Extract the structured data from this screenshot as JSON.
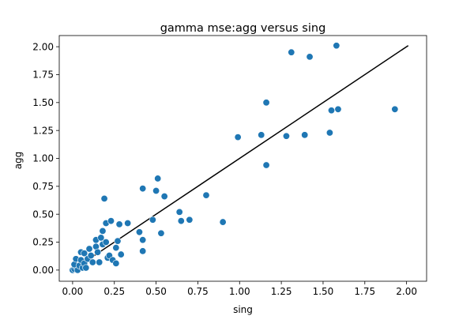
{
  "chart_data": {
    "type": "scatter",
    "title": "gamma mse:agg versus sing",
    "xlabel": "sing",
    "ylabel": "agg",
    "xlim": [
      -0.08,
      2.12
    ],
    "ylim": [
      -0.1,
      2.1
    ],
    "xticks": [
      0.0,
      0.25,
      0.5,
      0.75,
      1.0,
      1.25,
      1.5,
      1.75,
      2.0
    ],
    "xtick_labels": [
      "0.00",
      "0.25",
      "0.50",
      "0.75",
      "1.00",
      "1.25",
      "1.50",
      "1.75",
      "2.00"
    ],
    "yticks": [
      0.0,
      0.25,
      0.5,
      0.75,
      1.0,
      1.25,
      1.5,
      1.75,
      2.0
    ],
    "ytick_labels": [
      "0.00",
      "0.25",
      "0.50",
      "0.75",
      "1.00",
      "1.25",
      "1.50",
      "1.75",
      "2.00"
    ],
    "grid": false,
    "marker_color": "#1f77b4",
    "line_color": "#000000",
    "reference_line": {
      "x": [
        0.0,
        2.01
      ],
      "y": [
        0.0,
        2.01
      ]
    },
    "series": [
      {
        "points": [
          {
            "x": 0.0,
            "y": 0.0
          },
          {
            "x": 0.01,
            "y": 0.01
          },
          {
            "x": 0.02,
            "y": 0.03
          },
          {
            "x": 0.01,
            "y": 0.05
          },
          {
            "x": 0.02,
            "y": 0.1
          },
          {
            "x": 0.03,
            "y": 0.0
          },
          {
            "x": 0.04,
            "y": 0.04
          },
          {
            "x": 0.05,
            "y": 0.16
          },
          {
            "x": 0.05,
            "y": 0.09
          },
          {
            "x": 0.06,
            "y": 0.02
          },
          {
            "x": 0.07,
            "y": 0.15
          },
          {
            "x": 0.07,
            "y": 0.06
          },
          {
            "x": 0.08,
            "y": 0.02
          },
          {
            "x": 0.09,
            "y": 0.1
          },
          {
            "x": 0.1,
            "y": 0.19
          },
          {
            "x": 0.11,
            "y": 0.13
          },
          {
            "x": 0.12,
            "y": 0.07
          },
          {
            "x": 0.14,
            "y": 0.21
          },
          {
            "x": 0.14,
            "y": 0.27
          },
          {
            "x": 0.15,
            "y": 0.16
          },
          {
            "x": 0.16,
            "y": 0.07
          },
          {
            "x": 0.17,
            "y": 0.29
          },
          {
            "x": 0.18,
            "y": 0.35
          },
          {
            "x": 0.18,
            "y": 0.23
          },
          {
            "x": 0.19,
            "y": 0.64
          },
          {
            "x": 0.2,
            "y": 0.25
          },
          {
            "x": 0.2,
            "y": 0.42
          },
          {
            "x": 0.21,
            "y": 0.11
          },
          {
            "x": 0.22,
            "y": 0.13
          },
          {
            "x": 0.23,
            "y": 0.44
          },
          {
            "x": 0.24,
            "y": 0.09
          },
          {
            "x": 0.26,
            "y": 0.2
          },
          {
            "x": 0.26,
            "y": 0.06
          },
          {
            "x": 0.27,
            "y": 0.26
          },
          {
            "x": 0.28,
            "y": 0.41
          },
          {
            "x": 0.29,
            "y": 0.14
          },
          {
            "x": 0.33,
            "y": 0.42
          },
          {
            "x": 0.4,
            "y": 0.34
          },
          {
            "x": 0.42,
            "y": 0.73
          },
          {
            "x": 0.42,
            "y": 0.27
          },
          {
            "x": 0.42,
            "y": 0.17
          },
          {
            "x": 0.48,
            "y": 0.45
          },
          {
            "x": 0.5,
            "y": 0.71
          },
          {
            "x": 0.51,
            "y": 0.82
          },
          {
            "x": 0.53,
            "y": 0.33
          },
          {
            "x": 0.55,
            "y": 0.66
          },
          {
            "x": 0.64,
            "y": 0.52
          },
          {
            "x": 0.65,
            "y": 0.44
          },
          {
            "x": 0.7,
            "y": 0.45
          },
          {
            "x": 0.8,
            "y": 0.67
          },
          {
            "x": 0.9,
            "y": 0.43
          },
          {
            "x": 0.99,
            "y": 1.19
          },
          {
            "x": 1.13,
            "y": 1.21
          },
          {
            "x": 1.16,
            "y": 1.5
          },
          {
            "x": 1.16,
            "y": 0.94
          },
          {
            "x": 1.28,
            "y": 1.2
          },
          {
            "x": 1.31,
            "y": 1.95
          },
          {
            "x": 1.39,
            "y": 1.21
          },
          {
            "x": 1.42,
            "y": 1.91
          },
          {
            "x": 1.54,
            "y": 1.23
          },
          {
            "x": 1.55,
            "y": 1.43
          },
          {
            "x": 1.58,
            "y": 2.01
          },
          {
            "x": 1.59,
            "y": 1.44
          },
          {
            "x": 1.93,
            "y": 1.44
          }
        ]
      }
    ]
  }
}
